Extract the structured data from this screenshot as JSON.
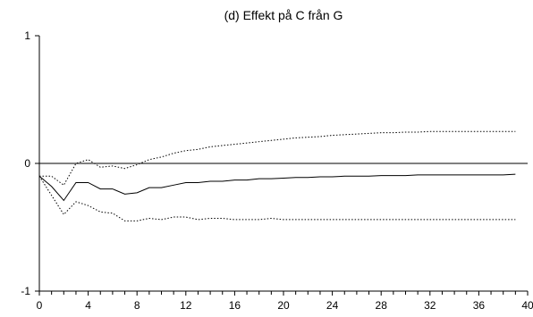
{
  "chart_data": {
    "type": "line",
    "title": "(d) Effekt på C från G",
    "xlabel": "",
    "ylabel": "",
    "xlim": [
      0,
      40
    ],
    "ylim": [
      -1,
      1
    ],
    "x_ticks": [
      0,
      4,
      8,
      12,
      16,
      20,
      24,
      28,
      32,
      36,
      40
    ],
    "y_ticks": [
      -1,
      0,
      1
    ],
    "x_tick_labels": [
      "0",
      "4",
      "8",
      "12",
      "16",
      "20",
      "24",
      "28",
      "32",
      "36",
      "40"
    ],
    "y_tick_labels": [
      "-1",
      "0",
      "1"
    ],
    "zero_line": true,
    "grid": false,
    "x": [
      0,
      1,
      2,
      3,
      4,
      5,
      6,
      7,
      8,
      9,
      10,
      11,
      12,
      13,
      14,
      15,
      16,
      17,
      18,
      19,
      20,
      21,
      22,
      23,
      24,
      25,
      26,
      27,
      28,
      29,
      30,
      31,
      32,
      33,
      34,
      35,
      36,
      37,
      38,
      39
    ],
    "series": [
      {
        "style": "solid",
        "color": "#000000",
        "values": [
          -0.1,
          -0.18,
          -0.29,
          -0.15,
          -0.15,
          -0.2,
          -0.2,
          -0.24,
          -0.23,
          -0.19,
          -0.19,
          -0.17,
          -0.15,
          -0.15,
          -0.14,
          -0.14,
          -0.13,
          -0.13,
          -0.12,
          -0.12,
          -0.115,
          -0.11,
          -0.11,
          -0.105,
          -0.105,
          -0.1,
          -0.1,
          -0.1,
          -0.095,
          -0.095,
          -0.095,
          -0.09,
          -0.09,
          -0.09,
          -0.09,
          -0.09,
          -0.09,
          -0.09,
          -0.09,
          -0.085
        ]
      },
      {
        "style": "dotted",
        "color": "#000000",
        "values": [
          -0.1,
          -0.1,
          -0.17,
          0.0,
          0.03,
          -0.03,
          -0.02,
          -0.04,
          -0.01,
          0.03,
          0.05,
          0.08,
          0.1,
          0.11,
          0.13,
          0.14,
          0.15,
          0.16,
          0.17,
          0.18,
          0.19,
          0.2,
          0.205,
          0.21,
          0.22,
          0.225,
          0.23,
          0.235,
          0.24,
          0.24,
          0.245,
          0.245,
          0.25,
          0.25,
          0.25,
          0.25,
          0.25,
          0.25,
          0.25,
          0.25
        ]
      },
      {
        "style": "dotted",
        "color": "#000000",
        "values": [
          -0.1,
          -0.25,
          -0.4,
          -0.3,
          -0.33,
          -0.38,
          -0.39,
          -0.45,
          -0.45,
          -0.43,
          -0.44,
          -0.42,
          -0.42,
          -0.44,
          -0.43,
          -0.43,
          -0.44,
          -0.44,
          -0.44,
          -0.43,
          -0.44,
          -0.44,
          -0.44,
          -0.44,
          -0.44,
          -0.44,
          -0.44,
          -0.44,
          -0.44,
          -0.44,
          -0.44,
          -0.44,
          -0.44,
          -0.44,
          -0.44,
          -0.44,
          -0.44,
          -0.44,
          -0.44,
          -0.44
        ]
      }
    ]
  }
}
